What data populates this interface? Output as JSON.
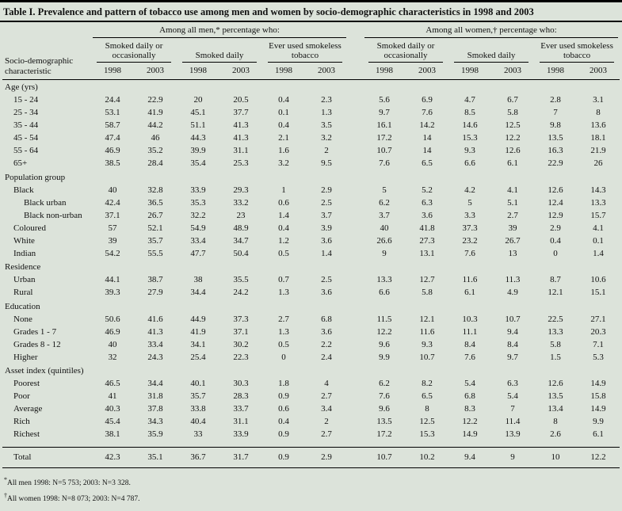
{
  "title": "Table I. Prevalence and pattern of tobacco use among men and women by socio-demographic characteristics in 1998 and 2003",
  "colors": {
    "page_background": "#dce3da",
    "text": "#111111",
    "rule": "#000000"
  },
  "header": {
    "row_label": "Socio-demographic characteristic",
    "groups": [
      {
        "label": "Among all men,* percentage who:"
      },
      {
        "label": "Among all women,† percentage who:"
      }
    ],
    "subgroups": [
      "Smoked daily or occasionally",
      "Smoked daily",
      "Ever used smokeless tobacco"
    ],
    "years": [
      "1998",
      "2003"
    ]
  },
  "sections": [
    {
      "label": "Age (yrs)",
      "rows": [
        {
          "label": "15 - 24",
          "indent": 1,
          "values": [
            "24.4",
            "22.9",
            "20",
            "20.5",
            "0.4",
            "2.3",
            "5.6",
            "6.9",
            "4.7",
            "6.7",
            "2.8",
            "3.1"
          ]
        },
        {
          "label": "25 - 34",
          "indent": 1,
          "values": [
            "53.1",
            "41.9",
            "45.1",
            "37.7",
            "0.1",
            "1.3",
            "9.7",
            "7.6",
            "8.5",
            "5.8",
            "7",
            "8"
          ]
        },
        {
          "label": "35 - 44",
          "indent": 1,
          "values": [
            "58.7",
            "44.2",
            "51.1",
            "41.3",
            "0.4",
            "3.5",
            "16.1",
            "14.2",
            "14.6",
            "12.5",
            "9.8",
            "13.6"
          ]
        },
        {
          "label": "45 - 54",
          "indent": 1,
          "values": [
            "47.4",
            "46",
            "44.3",
            "41.3",
            "2.1",
            "3.2",
            "17.2",
            "14",
            "15.3",
            "12.2",
            "13.5",
            "18.1"
          ]
        },
        {
          "label": "55 - 64",
          "indent": 1,
          "values": [
            "46.9",
            "35.2",
            "39.9",
            "31.1",
            "1.6",
            "2",
            "10.7",
            "14",
            "9.3",
            "12.6",
            "16.3",
            "21.9"
          ]
        },
        {
          "label": "65+",
          "indent": 1,
          "values": [
            "38.5",
            "28.4",
            "35.4",
            "25.3",
            "3.2",
            "9.5",
            "7.6",
            "6.5",
            "6.6",
            "6.1",
            "22.9",
            "26"
          ]
        }
      ]
    },
    {
      "label": "Population group",
      "rows": [
        {
          "label": "Black",
          "indent": 1,
          "values": [
            "40",
            "32.8",
            "33.9",
            "29.3",
            "1",
            "2.9",
            "5",
            "5.2",
            "4.2",
            "4.1",
            "12.6",
            "14.3"
          ]
        },
        {
          "label": "Black urban",
          "indent": 2,
          "values": [
            "42.4",
            "36.5",
            "35.3",
            "33.2",
            "0.6",
            "2.5",
            "6.2",
            "6.3",
            "5",
            "5.1",
            "12.4",
            "13.3"
          ]
        },
        {
          "label": "Black non-urban",
          "indent": 2,
          "values": [
            "37.1",
            "26.7",
            "32.2",
            "23",
            "1.4",
            "3.7",
            "3.7",
            "3.6",
            "3.3",
            "2.7",
            "12.9",
            "15.7"
          ]
        },
        {
          "label": "Coloured",
          "indent": 1,
          "values": [
            "57",
            "52.1",
            "54.9",
            "48.9",
            "0.4",
            "3.9",
            "40",
            "41.8",
            "37.3",
            "39",
            "2.9",
            "4.1"
          ]
        },
        {
          "label": "White",
          "indent": 1,
          "values": [
            "39",
            "35.7",
            "33.4",
            "34.7",
            "1.2",
            "3.6",
            "26.6",
            "27.3",
            "23.2",
            "26.7",
            "0.4",
            "0.1"
          ]
        },
        {
          "label": "Indian",
          "indent": 1,
          "values": [
            "54.2",
            "55.5",
            "47.7",
            "50.4",
            "0.5",
            "1.4",
            "9",
            "13.1",
            "7.6",
            "13",
            "0",
            "1.4"
          ]
        }
      ]
    },
    {
      "label": "Residence",
      "rows": [
        {
          "label": "Urban",
          "indent": 1,
          "values": [
            "44.1",
            "38.7",
            "38",
            "35.5",
            "0.7",
            "2.5",
            "13.3",
            "12.7",
            "11.6",
            "11.3",
            "8.7",
            "10.6"
          ]
        },
        {
          "label": "Rural",
          "indent": 1,
          "values": [
            "39.3",
            "27.9",
            "34.4",
            "24.2",
            "1.3",
            "3.6",
            "6.6",
            "5.8",
            "6.1",
            "4.9",
            "12.1",
            "15.1"
          ]
        }
      ]
    },
    {
      "label": "Education",
      "rows": [
        {
          "label": "None",
          "indent": 1,
          "values": [
            "50.6",
            "41.6",
            "44.9",
            "37.3",
            "2.7",
            "6.8",
            "11.5",
            "12.1",
            "10.3",
            "10.7",
            "22.5",
            "27.1"
          ]
        },
        {
          "label": "Grades 1 - 7",
          "indent": 1,
          "values": [
            "46.9",
            "41.3",
            "41.9",
            "37.1",
            "1.3",
            "3.6",
            "12.2",
            "11.6",
            "11.1",
            "9.4",
            "13.3",
            "20.3"
          ]
        },
        {
          "label": "Grades 8 - 12",
          "indent": 1,
          "values": [
            "40",
            "33.4",
            "34.1",
            "30.2",
            "0.5",
            "2.2",
            "9.6",
            "9.3",
            "8.4",
            "8.4",
            "5.8",
            "7.1"
          ]
        },
        {
          "label": "Higher",
          "indent": 1,
          "values": [
            "32",
            "24.3",
            "25.4",
            "22.3",
            "0",
            "2.4",
            "9.9",
            "10.7",
            "7.6",
            "9.7",
            "1.5",
            "5.3"
          ]
        }
      ]
    },
    {
      "label": "Asset index (quintiles)",
      "rows": [
        {
          "label": "Poorest",
          "indent": 1,
          "values": [
            "46.5",
            "34.4",
            "40.1",
            "30.3",
            "1.8",
            "4",
            "6.2",
            "8.2",
            "5.4",
            "6.3",
            "12.6",
            "14.9"
          ]
        },
        {
          "label": "Poor",
          "indent": 1,
          "values": [
            "41",
            "31.8",
            "35.7",
            "28.3",
            "0.9",
            "2.7",
            "7.6",
            "6.5",
            "6.8",
            "5.4",
            "13.5",
            "15.8"
          ]
        },
        {
          "label": "Average",
          "indent": 1,
          "values": [
            "40.3",
            "37.8",
            "33.8",
            "33.7",
            "0.6",
            "3.4",
            "9.6",
            "8",
            "8.3",
            "7",
            "13.4",
            "14.9"
          ]
        },
        {
          "label": "Rich",
          "indent": 1,
          "values": [
            "45.4",
            "34.3",
            "40.4",
            "31.1",
            "0.4",
            "2",
            "13.5",
            "12.5",
            "12.2",
            "11.4",
            "8",
            "9.9"
          ]
        },
        {
          "label": "Richest",
          "indent": 1,
          "values": [
            "38.1",
            "35.9",
            "33",
            "33.9",
            "0.9",
            "2.7",
            "17.2",
            "15.3",
            "14.9",
            "13.9",
            "2.6",
            "6.1"
          ]
        }
      ]
    }
  ],
  "total_row": {
    "label": "Total",
    "values": [
      "42.3",
      "35.1",
      "36.7",
      "31.7",
      "0.9",
      "2.9",
      "10.7",
      "10.2",
      "9.4",
      "9",
      "10",
      "12.2"
    ]
  },
  "footnotes": [
    {
      "marker": "*",
      "text": "All men 1998: N=5 753; 2003: N=3 328."
    },
    {
      "marker": "†",
      "text": "All women 1998: N=8 073; 2003: N=4 787."
    }
  ]
}
